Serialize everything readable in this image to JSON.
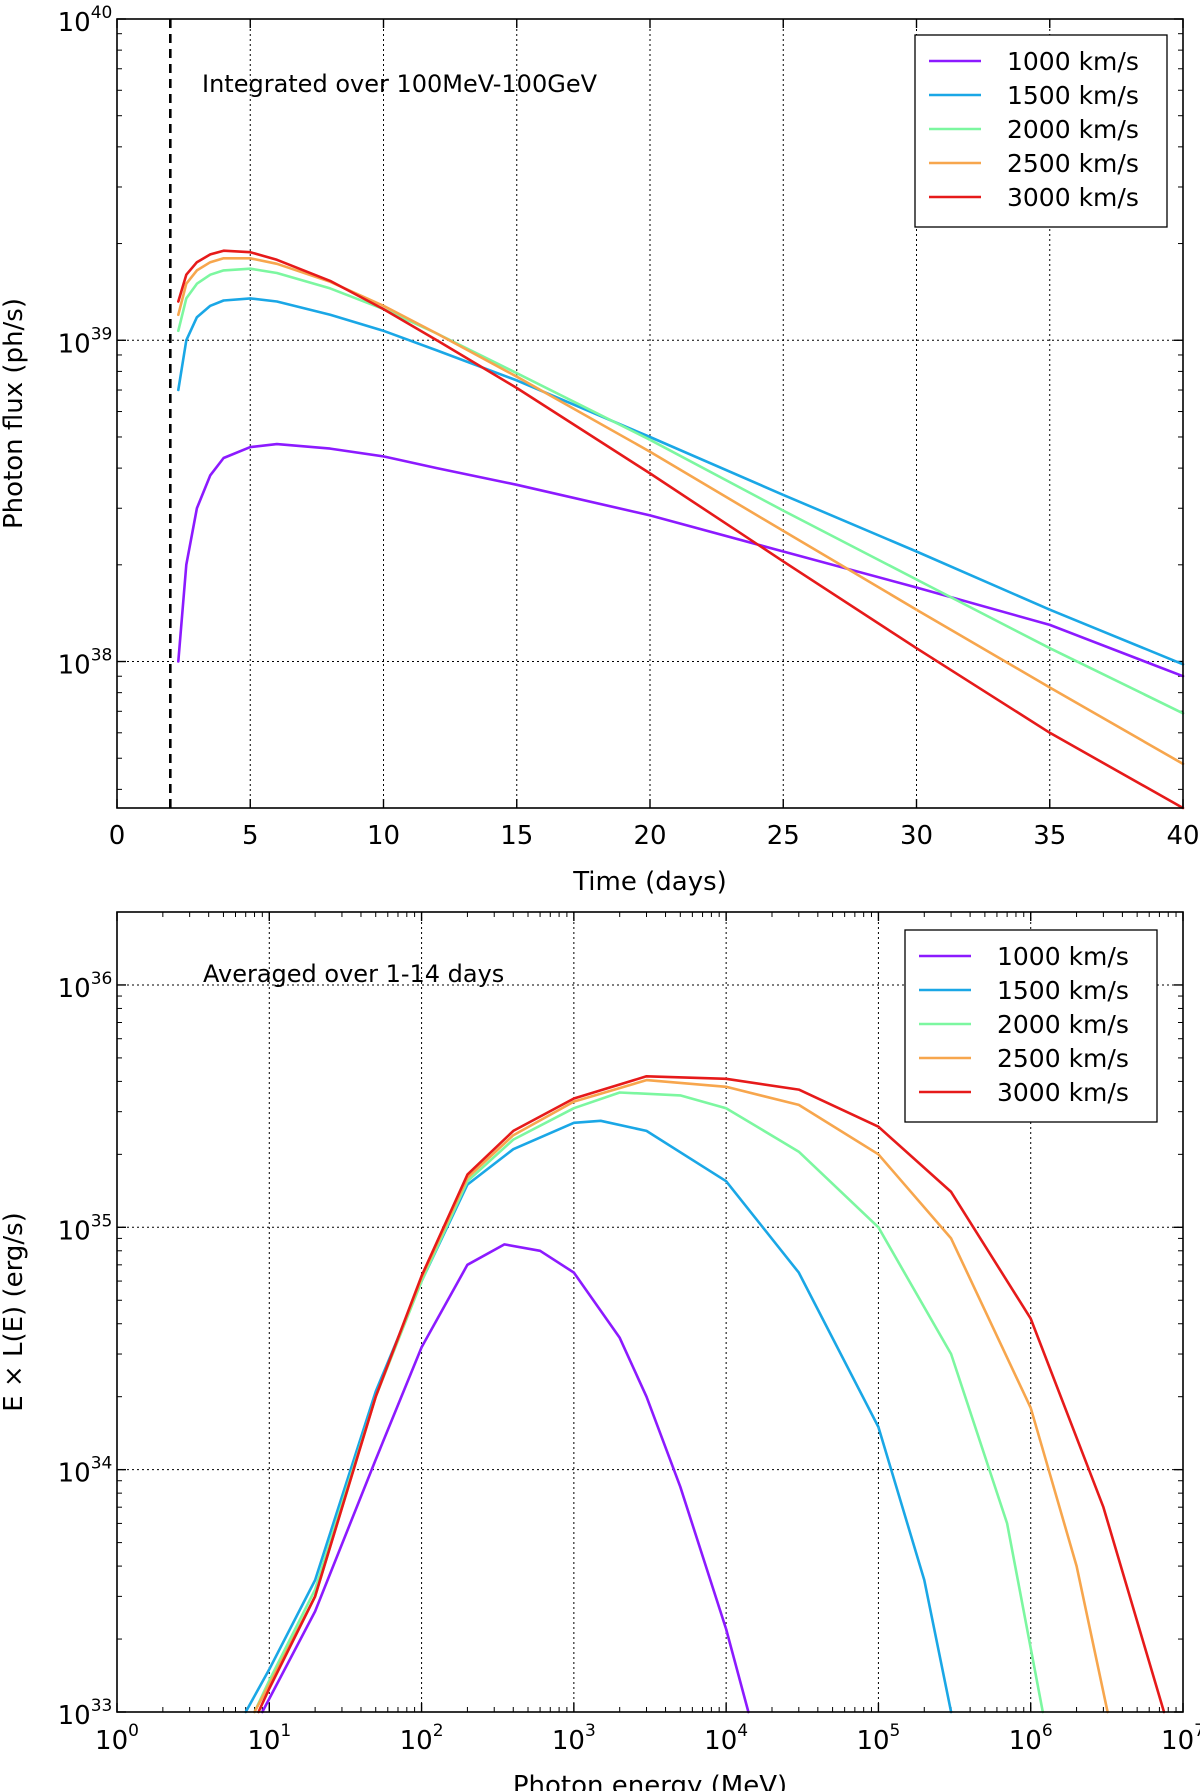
{
  "chart_data": [
    {
      "type": "line",
      "title": "",
      "xlabel": "Time (days)",
      "ylabel": "Photon flux (ph/s)",
      "xscale": "linear",
      "yscale": "log",
      "xlim": [
        0,
        40
      ],
      "ylim": [
        3.5e+37,
        1e+40
      ],
      "xticks": [
        0,
        5,
        10,
        15,
        20,
        25,
        30,
        35,
        40
      ],
      "xtick_labels": [
        "0",
        "5",
        "10",
        "15",
        "20",
        "25",
        "30",
        "35",
        "40"
      ],
      "yticks": [
        {
          "value": 1e+38,
          "base": "10",
          "exp": "38"
        },
        {
          "value": 1e+39,
          "base": "10",
          "exp": "39"
        },
        {
          "value": 1e+40,
          "base": "10",
          "exp": "40"
        }
      ],
      "grid": true,
      "annotation": "Integrated over 100MeV-100GeV",
      "vline_x": 2,
      "legend_position": "top-right",
      "x": [
        2.3,
        2.6,
        3,
        3.5,
        4,
        5,
        6,
        8,
        10,
        12,
        15,
        20,
        25,
        30,
        35,
        40
      ],
      "series": [
        {
          "name": "1000 km/s",
          "color": "#8c1aff",
          "values": [
            1e+38,
            2e+38,
            3e+38,
            3.8e+38,
            4.3e+38,
            4.65e+38,
            4.75e+38,
            4.6e+38,
            4.35e+38,
            4e+38,
            3.55e+38,
            2.85e+38,
            2.2e+38,
            1.7e+38,
            1.3e+38,
            9e+37
          ]
        },
        {
          "name": "1500 km/s",
          "color": "#1aa7e6",
          "values": [
            7e+38,
            1e+39,
            1.18e+39,
            1.28e+39,
            1.33e+39,
            1.35e+39,
            1.32e+39,
            1.2e+39,
            1.07e+39,
            9.3e+38,
            7.5e+38,
            5e+38,
            3.3e+38,
            2.2e+38,
            1.45e+38,
            9.8e+37
          ]
        },
        {
          "name": "2000 km/s",
          "color": "#7cf7a0",
          "values": [
            1.07e+39,
            1.35e+39,
            1.5e+39,
            1.6e+39,
            1.65e+39,
            1.67e+39,
            1.62e+39,
            1.45e+39,
            1.25e+39,
            1.05e+39,
            7.9e+38,
            4.9e+38,
            2.95e+38,
            1.8e+38,
            1.1e+38,
            6.9e+37
          ]
        },
        {
          "name": "2500 km/s",
          "color": "#f7a64d",
          "values": [
            1.2e+39,
            1.5e+39,
            1.65e+39,
            1.75e+39,
            1.8e+39,
            1.8e+39,
            1.73e+39,
            1.52e+39,
            1.28e+39,
            1.05e+39,
            7.7e+38,
            4.5e+38,
            2.55e+38,
            1.45e+38,
            8.3e+37,
            4.8e+37
          ]
        },
        {
          "name": "3000 km/s",
          "color": "#e61a1a",
          "values": [
            1.32e+39,
            1.6e+39,
            1.75e+39,
            1.85e+39,
            1.9e+39,
            1.88e+39,
            1.78e+39,
            1.53e+39,
            1.25e+39,
            1e+39,
            7.1e+38,
            3.85e+38,
            2.05e+38,
            1.1e+38,
            6e+37,
            3.5e+37
          ]
        }
      ]
    },
    {
      "type": "line",
      "title": "",
      "xlabel": "Photon energy (MeV)",
      "ylabel": "E × L(E) (erg/s)",
      "xscale": "log",
      "yscale": "log",
      "xlim": [
        1,
        10000000.0
      ],
      "ylim": [
        1e+33,
        2e+36
      ],
      "xticks": [
        {
          "value": 1,
          "base": "10",
          "exp": "0"
        },
        {
          "value": 10,
          "base": "10",
          "exp": "1"
        },
        {
          "value": 100,
          "base": "10",
          "exp": "2"
        },
        {
          "value": 1000,
          "base": "10",
          "exp": "3"
        },
        {
          "value": 10000,
          "base": "10",
          "exp": "4"
        },
        {
          "value": 100000,
          "base": "10",
          "exp": "5"
        },
        {
          "value": 1000000,
          "base": "10",
          "exp": "6"
        },
        {
          "value": 10000000,
          "base": "10",
          "exp": "7"
        }
      ],
      "yticks": [
        {
          "value": 1e+33,
          "base": "10",
          "exp": "33"
        },
        {
          "value": 1e+34,
          "base": "10",
          "exp": "34"
        },
        {
          "value": 1e+35,
          "base": "10",
          "exp": "35"
        },
        {
          "value": 1e+36,
          "base": "10",
          "exp": "36"
        }
      ],
      "grid": true,
      "annotation": "Averaged over 1-14 days",
      "legend_position": "top-right",
      "series": [
        {
          "name": "1000 km/s",
          "color": "#8c1aff",
          "x": [
            9,
            20,
            50,
            100,
            200,
            350,
            600,
            1000,
            2000,
            3000,
            5000,
            10000,
            14000
          ],
          "values": [
            1e+33,
            2.6e+33,
            1.1e+34,
            3.2e+34,
            7e+34,
            8.5e+34,
            8e+34,
            6.5e+34,
            3.5e+34,
            2e+34,
            8.5e+33,
            2.2e+33,
            1e+33
          ]
        },
        {
          "name": "1500 km/s",
          "color": "#1aa7e6",
          "x": [
            7,
            10,
            20,
            50,
            100,
            200,
            400,
            1000,
            1500,
            3000,
            10000,
            30000,
            100000,
            200000,
            300000
          ],
          "values": [
            1e+33,
            1.5e+33,
            3.5e+33,
            2.1e+34,
            6e+34,
            1.5e+35,
            2.1e+35,
            2.7e+35,
            2.75e+35,
            2.5e+35,
            1.55e+35,
            6.5e+34,
            1.5e+34,
            3.5e+33,
            1e+33
          ]
        },
        {
          "name": "2000 km/s",
          "color": "#7cf7a0",
          "x": [
            8,
            10,
            20,
            50,
            100,
            200,
            400,
            1000,
            2000,
            5000,
            10000,
            30000,
            100000,
            300000,
            700000,
            1200000
          ],
          "values": [
            1e+33,
            1.35e+33,
            3.2e+33,
            2e+34,
            6e+34,
            1.55e+35,
            2.3e+35,
            3.1e+35,
            3.6e+35,
            3.5e+35,
            3.1e+35,
            2.05e+35,
            1e+35,
            3e+34,
            6e+33,
            1e+33
          ]
        },
        {
          "name": "2500 km/s",
          "color": "#f7a64d",
          "x": [
            8,
            10,
            20,
            50,
            100,
            200,
            400,
            1000,
            3000,
            10000,
            30000,
            100000,
            300000,
            1000000,
            2000000,
            3200000
          ],
          "values": [
            1e+33,
            1.3e+33,
            3e+33,
            2e+34,
            6.2e+34,
            1.6e+35,
            2.4e+35,
            3.3e+35,
            4.05e+35,
            3.8e+35,
            3.2e+35,
            2e+35,
            9e+34,
            1.8e+34,
            4e+33,
            1e+33
          ]
        },
        {
          "name": "3000 km/s",
          "color": "#e61a1a",
          "x": [
            8.5,
            10,
            20,
            50,
            100,
            200,
            400,
            1000,
            3000,
            10000,
            30000,
            100000,
            300000,
            1000000,
            3000000,
            7500000
          ],
          "values": [
            1e+33,
            1.25e+33,
            3e+33,
            2e+34,
            6.3e+34,
            1.65e+35,
            2.5e+35,
            3.4e+35,
            4.2e+35,
            4.1e+35,
            3.7e+35,
            2.6e+35,
            1.4e+35,
            4.2e+34,
            7e+33,
            1e+33
          ]
        }
      ]
    }
  ]
}
